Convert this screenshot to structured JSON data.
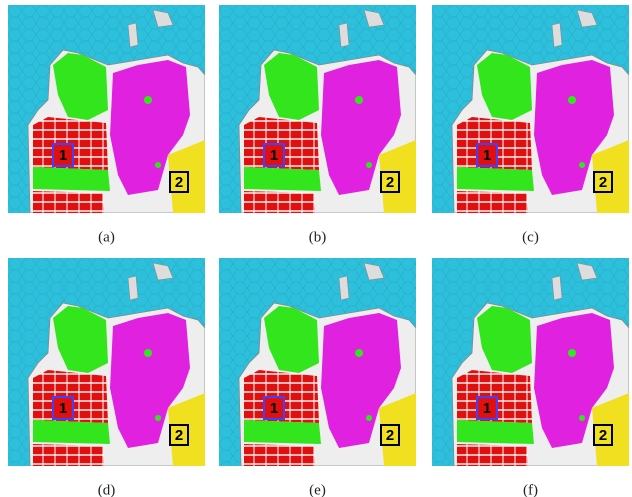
{
  "panels": [
    {
      "caption": "(a)",
      "markers": [
        "1",
        "2"
      ]
    },
    {
      "caption": "(b)",
      "markers": [
        "1",
        "2"
      ]
    },
    {
      "caption": "(c)",
      "markers": [
        "1",
        "2"
      ]
    },
    {
      "caption": "(d)",
      "markers": [
        "1",
        "2"
      ]
    },
    {
      "caption": "(e)",
      "markers": [
        "1",
        "2"
      ]
    },
    {
      "caption": "(f)",
      "markers": [
        "1",
        "2"
      ]
    }
  ]
}
